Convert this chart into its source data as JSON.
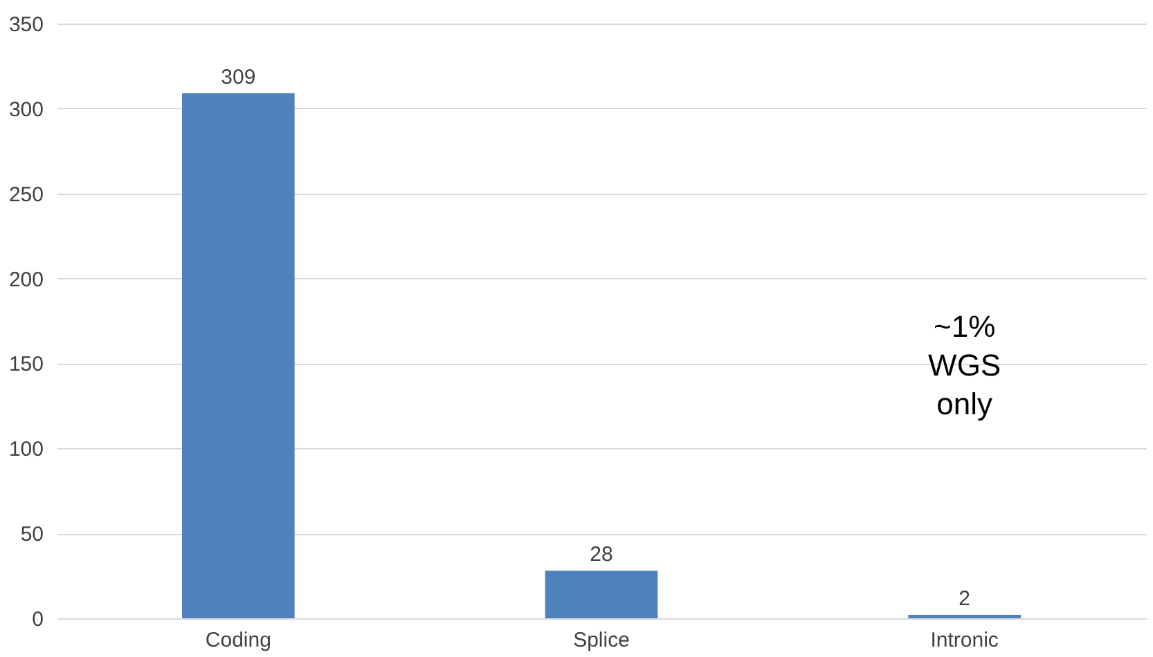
{
  "chart_data": {
    "type": "bar",
    "categories": [
      "Coding",
      "Splice",
      "Intronic"
    ],
    "values": [
      309,
      28,
      2
    ],
    "color": "#4f81bd",
    "ylim": [
      0,
      350
    ],
    "yticks": [
      0,
      50,
      100,
      150,
      200,
      250,
      300,
      350
    ],
    "grid": "y",
    "data_labels": true,
    "annotations": [
      "~1%\nWGS\nonly"
    ]
  }
}
